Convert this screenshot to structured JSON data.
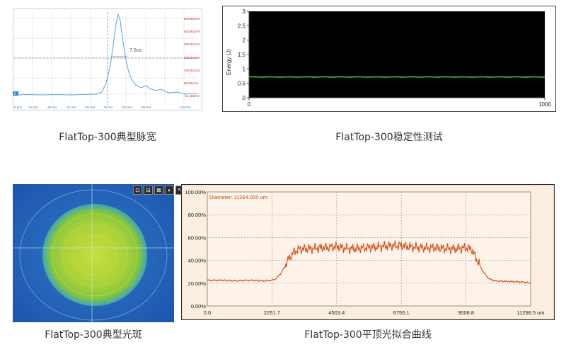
{
  "captions": {
    "pulse": "FlatTop-300典型脉宽",
    "stability": "FlatTop-300稳定性测试",
    "spot": "FlatTop-300典型光斑",
    "fit": "FlatTop-300平顶光拟合曲线"
  },
  "pulse_chart": {
    "annotation": "7.5ns",
    "left_marker": "0",
    "right_ticks": [
      "500.841mV",
      "400.841mV",
      "300.841mV",
      "200.841mV",
      "100.841mV",
      "50.841mV",
      "-11.159mV"
    ],
    "x_ticks": [
      "0.0ns",
      "14.0ns",
      "28.0ns",
      "42.0ns",
      "56.0ns",
      "70.0ns",
      "84.0ns",
      "98.0ns",
      "112.0ns"
    ]
  },
  "spot_tools": [
    "⊡",
    "⊟",
    "⊠",
    "◐",
    "↖"
  ],
  "chart_data": [
    {
      "type": "line",
      "ylabel": "Energy (J)",
      "xlim": [
        0,
        1000
      ],
      "ylim": [
        0,
        3
      ],
      "x_ticks": [
        "0",
        "1000"
      ],
      "y_ticks": [
        "0",
        "0.5",
        "1",
        "1.5",
        "2",
        "2.5",
        "3"
      ],
      "series": [
        {
          "color": "#3ee24a",
          "level": 0.72
        }
      ]
    },
    {
      "type": "line",
      "title": "Diameter: 11264.000 um",
      "xlim": [
        0,
        11258.5
      ],
      "ylim": [
        0,
        100
      ],
      "x_ticks": [
        "0.0",
        "2251.7",
        "4503.4",
        "6755.1",
        "9006.8",
        "11258.5 um"
      ],
      "y_ticks": [
        "0.00%",
        "20.00%",
        "40.00%",
        "60.00%",
        "80.00%",
        "100.00%"
      ],
      "series": [
        {
          "color": "#d2521c",
          "x": [
            0,
            500,
            1000,
            1500,
            2000,
            2251.7,
            2400,
            2600,
            2800,
            3000,
            3200,
            3500,
            4000,
            4503.4,
            5000,
            5500,
            6000,
            6500,
            6755.1,
            7000,
            7500,
            8000,
            8500,
            9006.8,
            9200,
            9400,
            9600,
            9800,
            10000,
            10500,
            11000,
            11258.5
          ],
          "y": [
            22.5,
            22.5,
            22,
            22.5,
            22,
            22.5,
            24,
            30,
            40,
            47,
            50,
            50,
            51,
            52,
            50,
            51,
            52,
            53,
            53,
            52,
            51,
            51,
            50,
            51,
            50,
            40,
            30,
            24,
            22,
            21.5,
            21,
            20
          ]
        }
      ]
    }
  ]
}
